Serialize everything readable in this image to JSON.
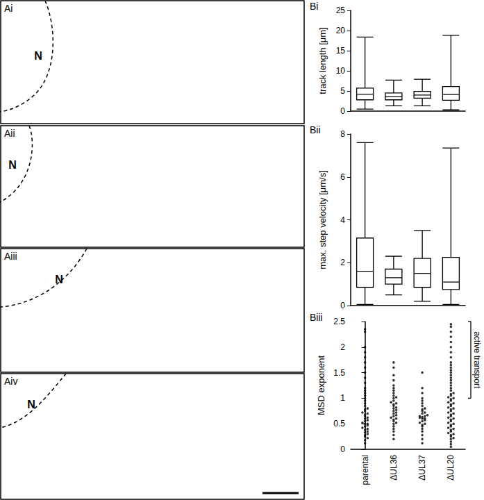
{
  "panels": [
    {
      "label": "Ai",
      "nucleus": "N"
    },
    {
      "label": "Aii",
      "nucleus": "N"
    },
    {
      "label": "Aiii",
      "nucleus": "N"
    },
    {
      "label": "Aiv",
      "nucleus": "N"
    }
  ],
  "chart_data": [
    {
      "type": "boxplot",
      "label": "Bi",
      "y_label": "track length [μm]",
      "categories": [
        "parental",
        "ΔUL36",
        "ΔUL37",
        "ΔUL20"
      ],
      "values": [
        [
          0.5,
          2.8,
          4.2,
          5.7,
          18.4
        ],
        [
          1.3,
          2.8,
          3.6,
          4.5,
          7.7
        ],
        [
          1.3,
          3.2,
          4.0,
          4.9,
          7.9
        ],
        [
          0.3,
          2.7,
          4.1,
          6.1,
          18.8
        ]
      ],
      "color": "#000000",
      "ylim": [
        0,
        25
      ],
      "yticks": [
        0,
        5,
        10,
        15,
        20,
        25
      ],
      "grid": false,
      "tick_labels": "y"
    },
    {
      "type": "boxplot",
      "label": "Bii",
      "y_label": "max. step velocity [μm/s]",
      "categories": [
        "parental",
        "ΔUL36",
        "ΔUL37",
        "ΔUL20"
      ],
      "values": [
        [
          0.05,
          0.85,
          1.6,
          3.15,
          7.6
        ],
        [
          0.5,
          1.0,
          1.3,
          1.7,
          2.3
        ],
        [
          0.2,
          0.85,
          1.5,
          2.2,
          3.5
        ],
        [
          0.05,
          0.75,
          1.1,
          2.25,
          7.35
        ]
      ],
      "color": "#000000",
      "ylim": [
        0,
        8
      ],
      "yticks": [
        0,
        2,
        4,
        6,
        8
      ],
      "grid": false,
      "tick_labels": "y"
    },
    {
      "type": "scatter",
      "label": "Biii",
      "y_label": "MSD exponent",
      "categories": [
        "parental",
        "ΔUL36",
        "ΔUL37",
        "ΔUL20"
      ],
      "values": [
        [
          0.12,
          0.18,
          0.22,
          0.25,
          0.28,
          0.3,
          0.33,
          0.35,
          0.38,
          0.4,
          0.42,
          0.45,
          0.47,
          0.5,
          0.5,
          0.52,
          0.55,
          0.57,
          0.6,
          0.62,
          0.65,
          0.68,
          0.7,
          0.72,
          0.75,
          0.78,
          0.8,
          0.85,
          0.9,
          0.95,
          1.0,
          1.05,
          1.1,
          1.15,
          1.2,
          1.3,
          1.4,
          1.5,
          1.6,
          1.7,
          1.8,
          1.9,
          2.0,
          2.3,
          2.35
        ],
        [
          0.2,
          0.28,
          0.35,
          0.4,
          0.45,
          0.5,
          0.52,
          0.55,
          0.58,
          0.6,
          0.62,
          0.65,
          0.67,
          0.7,
          0.72,
          0.75,
          0.77,
          0.8,
          0.82,
          0.85,
          0.88,
          0.9,
          0.92,
          0.95,
          1.0,
          1.02,
          1.05,
          1.1,
          1.15,
          1.2,
          1.25,
          1.35,
          1.45,
          1.6,
          1.7
        ],
        [
          0.12,
          0.2,
          0.28,
          0.35,
          0.4,
          0.45,
          0.48,
          0.5,
          0.52,
          0.55,
          0.57,
          0.6,
          0.6,
          0.62,
          0.63,
          0.65,
          0.65,
          0.67,
          0.7,
          0.72,
          0.75,
          0.78,
          0.8,
          0.85,
          0.9,
          0.95,
          1.0,
          1.1,
          1.2,
          1.5
        ],
        [
          0.05,
          0.1,
          0.15,
          0.2,
          0.22,
          0.25,
          0.28,
          0.3,
          0.32,
          0.35,
          0.38,
          0.4,
          0.42,
          0.45,
          0.48,
          0.5,
          0.52,
          0.55,
          0.58,
          0.6,
          0.62,
          0.65,
          0.68,
          0.7,
          0.72,
          0.75,
          0.78,
          0.8,
          0.82,
          0.85,
          0.88,
          0.9,
          0.92,
          0.95,
          0.98,
          1.0,
          1.02,
          1.05,
          1.08,
          1.1,
          1.15,
          1.2,
          1.25,
          1.3,
          1.35,
          1.4,
          1.45,
          1.5,
          1.55,
          1.6,
          1.65,
          1.7,
          1.8,
          1.9,
          2.0,
          2.1,
          2.2,
          2.3,
          2.4,
          2.45
        ]
      ],
      "color": "#000000",
      "marker": "circle",
      "ylim": [
        0,
        2.5
      ],
      "yticks": [
        0,
        0.5,
        1,
        1.5,
        2,
        2.5
      ],
      "grid": false,
      "annotations": [
        {
          "text": "active transport",
          "ylim": [
            1,
            2.5
          ]
        }
      ]
    }
  ]
}
